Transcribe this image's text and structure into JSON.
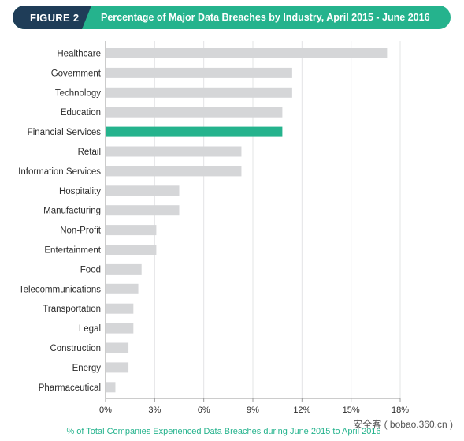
{
  "header": {
    "figure_label": "FIGURE 2",
    "title": "Percentage of Major Data Breaches by Industry, April 2015 - June 2016"
  },
  "chart_data": {
    "type": "bar",
    "orientation": "horizontal",
    "title": "Percentage of Major Data Breaches by Industry, April 2015 - June 2016",
    "xlabel": "% of Total Companies Experienced Data Breaches during June 2015 to April 2016",
    "ylabel": "",
    "xlim": [
      0,
      18
    ],
    "x_ticks": [
      0,
      3,
      6,
      9,
      12,
      15,
      18
    ],
    "x_tick_labels": [
      "0%",
      "3%",
      "6%",
      "9%",
      "12%",
      "15%",
      "18%"
    ],
    "grid": "vertical",
    "categories": [
      "Healthcare",
      "Government",
      "Technology",
      "Education",
      "Financial Services",
      "Retail",
      "Information Services",
      "Hospitality",
      "Manufacturing",
      "Non-Profit",
      "Entertainment",
      "Food",
      "Telecommunications",
      "Transportation",
      "Legal",
      "Construction",
      "Energy",
      "Pharmaceutical"
    ],
    "values": [
      17.2,
      11.4,
      11.4,
      10.8,
      10.8,
      8.3,
      8.3,
      4.5,
      4.5,
      3.1,
      3.1,
      2.2,
      2.0,
      1.7,
      1.7,
      1.4,
      1.4,
      0.6
    ],
    "highlight": "Financial Services",
    "colors": {
      "default": "#d5d6d8",
      "highlight": "#25b38d",
      "grid": "#e3e4e6"
    }
  },
  "watermark": "安全客 ( bobao.360.cn )"
}
